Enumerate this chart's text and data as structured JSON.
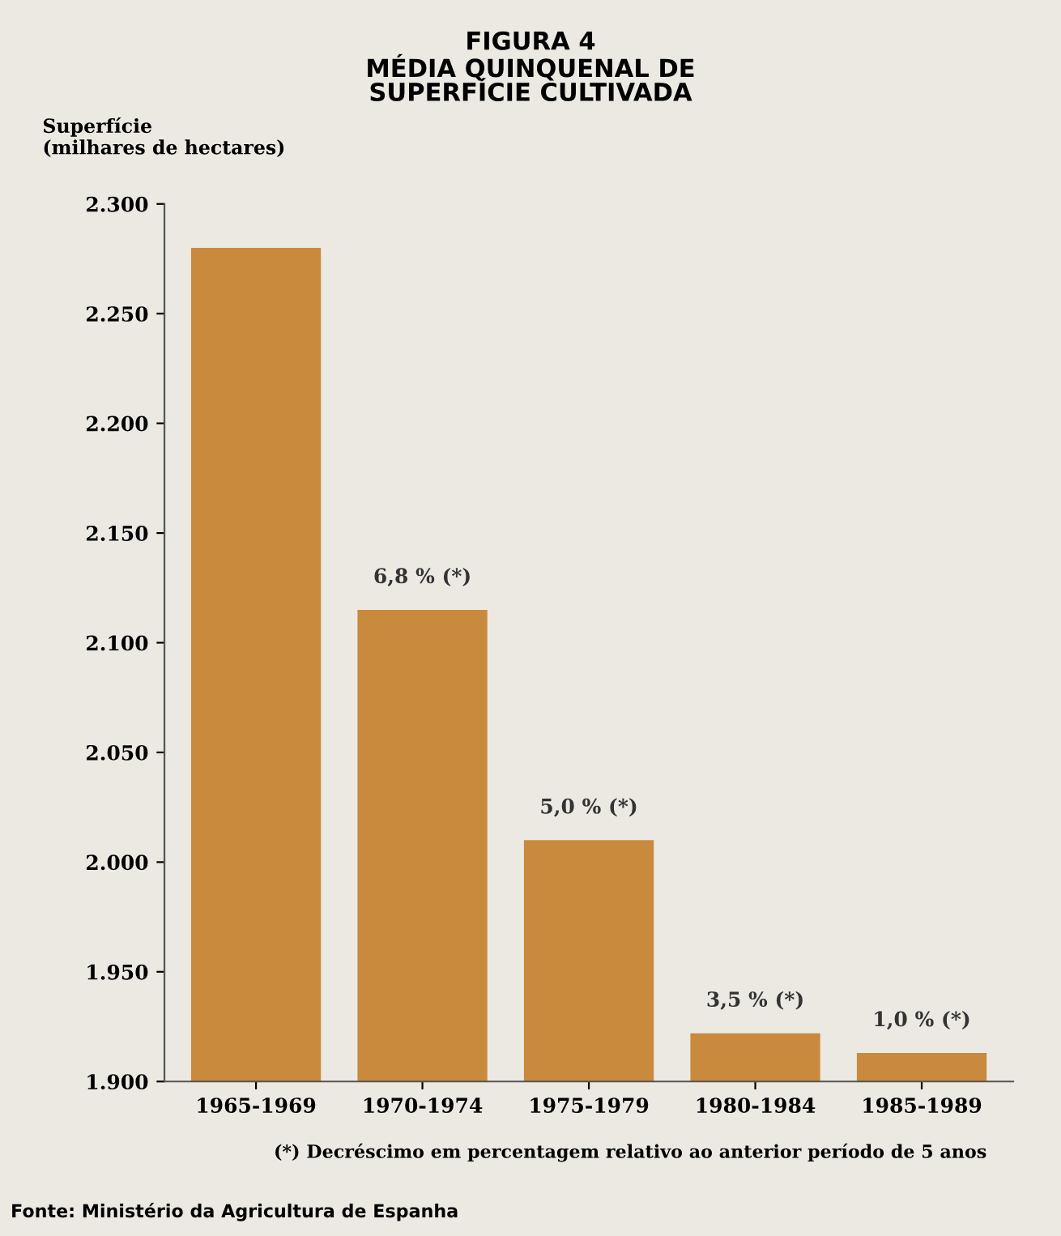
{
  "chart_data": {
    "type": "bar",
    "title": "FIGURA 4",
    "subtitle": "MÉDIA QUINQUENAL DE\nSUPERFÍCIE CULTIVADA",
    "ylabel": "Superfície\n(milhares de hectares)",
    "categories": [
      "1965-1969",
      "1970-1974",
      "1975-1979",
      "1980-1984",
      "1985-1989"
    ],
    "values": [
      2280,
      2115,
      2010,
      1922,
      1913
    ],
    "color": "#c98a3e",
    "ylim": [
      1900,
      2300
    ],
    "yticks": [
      {
        "value": 1900,
        "label": "1.900"
      },
      {
        "value": 1950,
        "label": "1.950"
      },
      {
        "value": 2000,
        "label": "2.000"
      },
      {
        "value": 2050,
        "label": "2.050"
      },
      {
        "value": 2100,
        "label": "2.100"
      },
      {
        "value": 2150,
        "label": "2.150"
      },
      {
        "value": 2200,
        "label": "2.200"
      },
      {
        "value": 2250,
        "label": "2.250"
      },
      {
        "value": 2300,
        "label": "2.300"
      }
    ],
    "grid": false,
    "legend": false,
    "annotations": [
      {
        "text": "6,8 % (*)",
        "x": "1970-1974",
        "y": 2115
      },
      {
        "text": "5,0 % (*)",
        "x": "1975-1979",
        "y": 2010
      },
      {
        "text": "3,5 % (*)",
        "x": "1980-1984",
        "y": 1922
      },
      {
        "text": "1,0 % (*)",
        "x": "1985-1989",
        "y": 1913
      },
      "(*) Decréscimo em percentagem relativo ao anterior período de 5 anos",
      "Fonte: Ministério da Agricultura de Espanha"
    ]
  }
}
